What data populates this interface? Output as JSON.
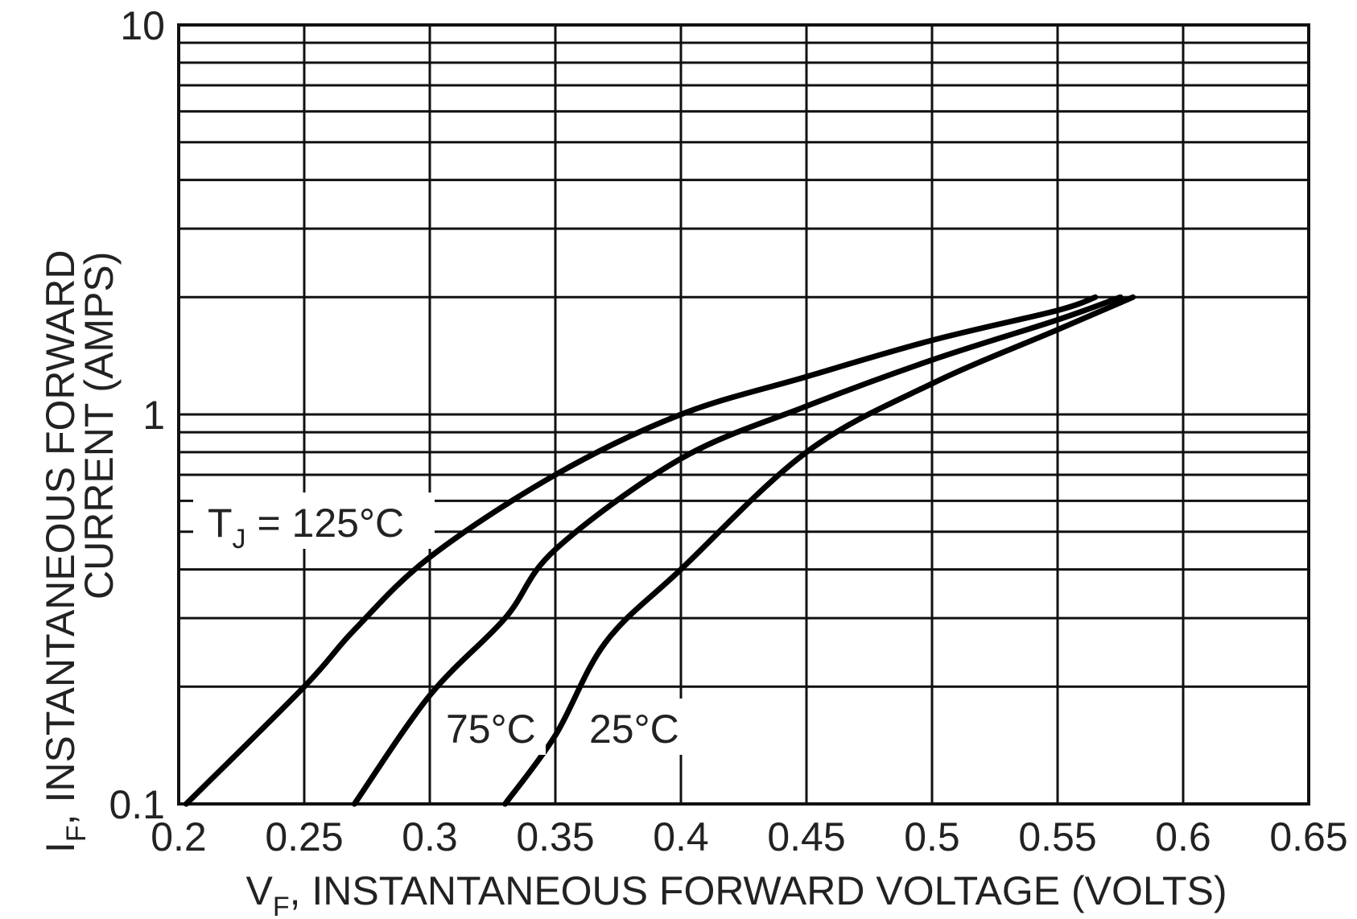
{
  "chart_data": {
    "type": "line",
    "xlabel_main": "V",
    "xlabel_sub": "F",
    "xlabel_rest": ", INSTANTANEOUS FORWARD VOLTAGE (VOLTS)",
    "ylabel_main": "I",
    "ylabel_sub": "F",
    "ylabel_rest": ", INSTANTANEOUS FORWARD",
    "ylabel_line2": "CURRENT (AMPS)",
    "xlim": [
      0.2,
      0.65
    ],
    "ylim": [
      0.1,
      10
    ],
    "yscale": "log",
    "grid": true,
    "x_ticks": [
      "0.2",
      "0.25",
      "0.3",
      "0.35",
      "0.4",
      "0.45",
      "0.5",
      "0.55",
      "0.6",
      "0.65"
    ],
    "y_ticks": [
      "0.1",
      "1",
      "10"
    ],
    "series": [
      {
        "label_main": "T",
        "label_sub": "J",
        "label_rest": " = 125°C",
        "points": [
          {
            "x": 0.203,
            "y": 0.1
          },
          {
            "x": 0.25,
            "y": 0.2
          },
          {
            "x": 0.27,
            "y": 0.28
          },
          {
            "x": 0.3,
            "y": 0.43
          },
          {
            "x": 0.35,
            "y": 0.7
          },
          {
            "x": 0.4,
            "y": 1.0
          },
          {
            "x": 0.45,
            "y": 1.25
          },
          {
            "x": 0.5,
            "y": 1.55
          },
          {
            "x": 0.55,
            "y": 1.85
          },
          {
            "x": 0.565,
            "y": 2.0
          }
        ]
      },
      {
        "label_main": "75°C",
        "points": [
          {
            "x": 0.27,
            "y": 0.1
          },
          {
            "x": 0.3,
            "y": 0.19
          },
          {
            "x": 0.33,
            "y": 0.3
          },
          {
            "x": 0.35,
            "y": 0.45
          },
          {
            "x": 0.4,
            "y": 0.77
          },
          {
            "x": 0.45,
            "y": 1.05
          },
          {
            "x": 0.5,
            "y": 1.38
          },
          {
            "x": 0.55,
            "y": 1.75
          },
          {
            "x": 0.575,
            "y": 2.0
          }
        ]
      },
      {
        "label_main": "25°C",
        "points": [
          {
            "x": 0.33,
            "y": 0.1
          },
          {
            "x": 0.35,
            "y": 0.15
          },
          {
            "x": 0.37,
            "y": 0.26
          },
          {
            "x": 0.4,
            "y": 0.4
          },
          {
            "x": 0.45,
            "y": 0.8
          },
          {
            "x": 0.5,
            "y": 1.2
          },
          {
            "x": 0.55,
            "y": 1.65
          },
          {
            "x": 0.58,
            "y": 2.0
          }
        ]
      }
    ]
  }
}
